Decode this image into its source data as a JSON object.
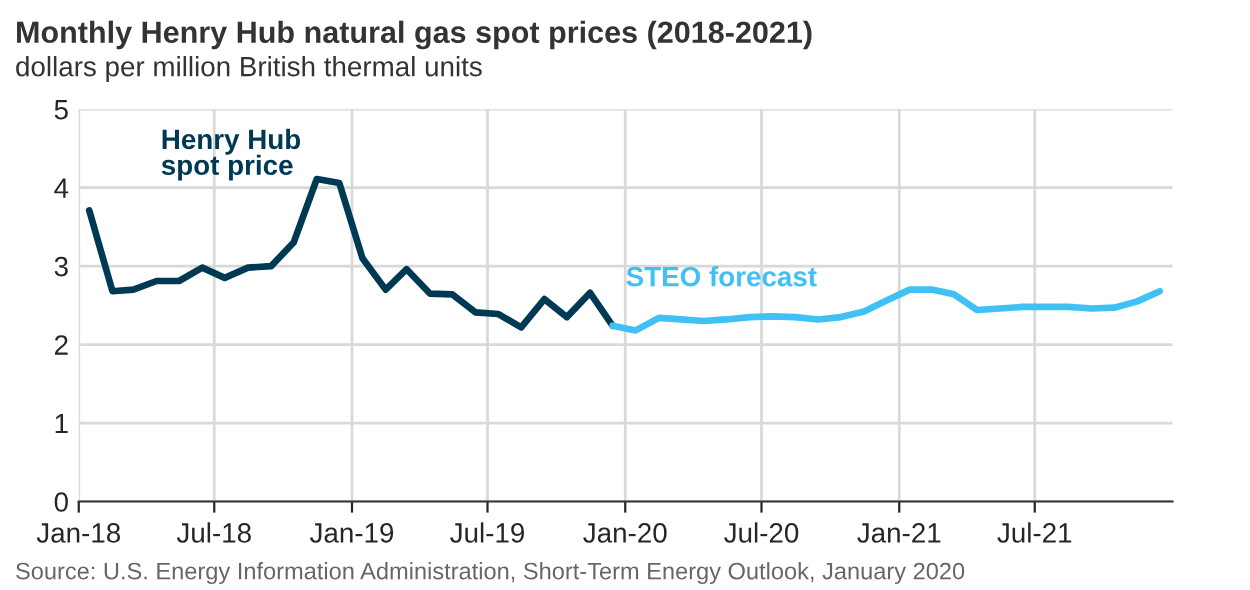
{
  "chart_data": {
    "type": "line",
    "title": "Monthly Henry Hub natural gas spot prices (2018-2021)",
    "subtitle": "dollars per million British thermal units",
    "series": [
      {
        "name": "Henry Hub\nspot price",
        "color": "#003953",
        "x": [
          "2018-01-15",
          "2018-02-15",
          "2018-03-15",
          "2018-04-15",
          "2018-05-15",
          "2018-06-15",
          "2018-07-15",
          "2018-08-15",
          "2018-09-15",
          "2018-10-15",
          "2018-11-15",
          "2018-12-15",
          "2019-01-15",
          "2019-02-15",
          "2019-03-15",
          "2019-04-15",
          "2019-05-15",
          "2019-06-15",
          "2019-07-15",
          "2019-08-15",
          "2019-09-15",
          "2019-10-15",
          "2019-11-15",
          "2019-12-15"
        ],
        "values": [
          3.71,
          2.68,
          2.7,
          2.81,
          2.81,
          2.98,
          2.85,
          2.98,
          3.0,
          3.3,
          4.11,
          4.06,
          3.1,
          2.7,
          2.96,
          2.65,
          2.64,
          2.41,
          2.39,
          2.22,
          2.58,
          2.35,
          2.66,
          2.24
        ]
      },
      {
        "name": "STEO forecast",
        "color": "#3fc1f5",
        "x": [
          "2019-12-15",
          "2020-01-15",
          "2020-02-15",
          "2020-03-15",
          "2020-04-15",
          "2020-05-15",
          "2020-06-15",
          "2020-07-15",
          "2020-08-15",
          "2020-09-15",
          "2020-10-15",
          "2020-11-15",
          "2020-12-15",
          "2021-01-15",
          "2021-02-15",
          "2021-03-15",
          "2021-04-15",
          "2021-05-15",
          "2021-06-15",
          "2021-07-15",
          "2021-08-15",
          "2021-09-15",
          "2021-10-15",
          "2021-11-15",
          "2021-12-15"
        ],
        "values": [
          2.24,
          2.18,
          2.34,
          2.32,
          2.3,
          2.32,
          2.35,
          2.36,
          2.35,
          2.32,
          2.35,
          2.42,
          2.56,
          2.7,
          2.7,
          2.64,
          2.44,
          2.46,
          2.48,
          2.48,
          2.48,
          2.46,
          2.47,
          2.55,
          2.68
        ]
      }
    ],
    "xlim": [
      "2018-01-01",
      "2022-01-01"
    ],
    "xticks": [
      {
        "value": "2018-01-01",
        "label": "Jan-18"
      },
      {
        "value": "2018-07-01",
        "label": "Jul-18"
      },
      {
        "value": "2019-01-01",
        "label": "Jan-19"
      },
      {
        "value": "2019-07-01",
        "label": "Jul-19"
      },
      {
        "value": "2020-01-01",
        "label": "Jan-20"
      },
      {
        "value": "2020-07-01",
        "label": "Jul-20"
      },
      {
        "value": "2021-01-01",
        "label": "Jan-21"
      },
      {
        "value": "2021-07-01",
        "label": "Jul-21"
      }
    ],
    "ylim": [
      0,
      5
    ],
    "yticks": [
      0,
      1,
      2,
      3,
      4,
      5
    ],
    "grid": true,
    "legend": false,
    "annotations": [
      "Source: U.S. Energy Information Administration, Short-Term Energy Outlook, January 2020"
    ]
  }
}
